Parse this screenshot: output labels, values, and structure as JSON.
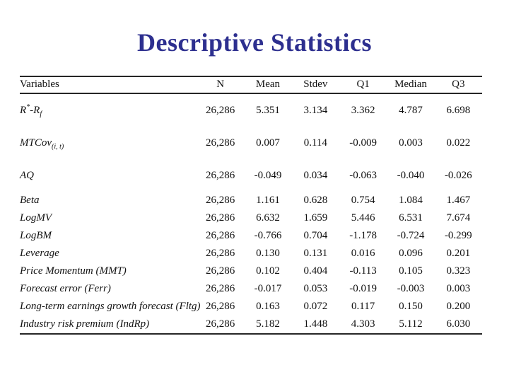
{
  "slide": {
    "title": "Descriptive Statistics",
    "title_color": "#2d2f8f",
    "rule_color": "#262626",
    "background_color": "#ffffff"
  },
  "table": {
    "columns": [
      "Variables",
      "N",
      "Mean",
      "Stdev",
      "Q1",
      "Median",
      "Q3"
    ],
    "rows": [
      {
        "tall": true,
        "label": [
          [
            "t",
            "R"
          ],
          [
            "sup",
            "*"
          ],
          [
            "t",
            "-R"
          ],
          [
            "sub",
            "f"
          ]
        ],
        "values": [
          "26,286",
          "5.351",
          "3.134",
          "3.362",
          "4.787",
          "6.698"
        ]
      },
      {
        "tall": true,
        "label": [
          [
            "t",
            "MTCov"
          ],
          [
            "sub",
            "(i, t)"
          ]
        ],
        "values": [
          "26,286",
          "0.007",
          "0.114",
          "-0.009",
          "0.003",
          "0.022"
        ]
      },
      {
        "tall": true,
        "label": [
          [
            "t",
            "AQ"
          ]
        ],
        "values": [
          "26,286",
          "-0.049",
          "0.034",
          "-0.063",
          "-0.040",
          "-0.026"
        ]
      },
      {
        "tall": false,
        "label": [
          [
            "t",
            "Beta"
          ]
        ],
        "values": [
          "26,286",
          "1.161",
          "0.628",
          "0.754",
          "1.084",
          "1.467"
        ]
      },
      {
        "tall": false,
        "label": [
          [
            "t",
            "LogMV"
          ]
        ],
        "values": [
          "26,286",
          "6.632",
          "1.659",
          "5.446",
          "6.531",
          "7.674"
        ]
      },
      {
        "tall": false,
        "label": [
          [
            "t",
            "LogBM"
          ]
        ],
        "values": [
          "26,286",
          "-0.766",
          "0.704",
          "-1.178",
          "-0.724",
          "-0.299"
        ]
      },
      {
        "tall": false,
        "label": [
          [
            "t",
            "Leverage"
          ]
        ],
        "values": [
          "26,286",
          "0.130",
          "0.131",
          "0.016",
          "0.096",
          "0.201"
        ]
      },
      {
        "tall": false,
        "label": [
          [
            "t",
            "Price Momentum (MMT)"
          ]
        ],
        "values": [
          "26,286",
          "0.102",
          "0.404",
          "-0.113",
          "0.105",
          "0.323"
        ]
      },
      {
        "tall": false,
        "label": [
          [
            "t",
            "Forecast error (Ferr)"
          ]
        ],
        "values": [
          "26,286",
          "-0.017",
          "0.053",
          "-0.019",
          "-0.003",
          "0.003"
        ]
      },
      {
        "tall": false,
        "label": [
          [
            "t",
            "Long-term earnings growth forecast (Fltg)"
          ]
        ],
        "values": [
          "26,286",
          "0.163",
          "0.072",
          "0.117",
          "0.150",
          "0.200"
        ]
      },
      {
        "tall": false,
        "label": [
          [
            "t",
            "Industry risk premium (IndRp)"
          ]
        ],
        "values": [
          "26,286",
          "5.182",
          "1.448",
          "4.303",
          "5.112",
          "6.030"
        ]
      }
    ]
  }
}
